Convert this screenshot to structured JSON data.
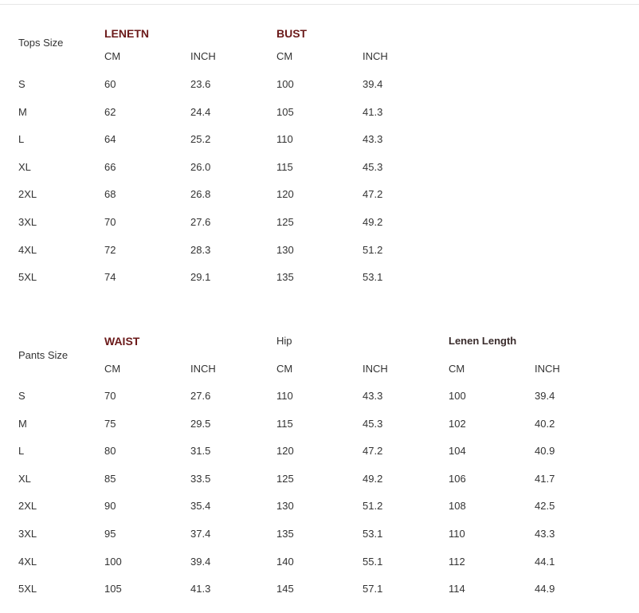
{
  "tops": {
    "label": "Tops Size",
    "groups": [
      {
        "title": "LENETN",
        "style": "hd"
      },
      {
        "title": "BUST",
        "style": "hd"
      }
    ],
    "units": [
      "CM",
      "INCH",
      "CM",
      "INCH"
    ],
    "rows": [
      [
        "S",
        "60",
        "23.6",
        "100",
        "39.4"
      ],
      [
        "M",
        "62",
        "24.4",
        "105",
        "41.3"
      ],
      [
        "L",
        "64",
        "25.2",
        "110",
        "43.3"
      ],
      [
        "XL",
        "66",
        "26.0",
        "115",
        "45.3"
      ],
      [
        "2XL",
        "68",
        "26.8",
        "120",
        "47.2"
      ],
      [
        "3XL",
        "70",
        "27.6",
        "125",
        "49.2"
      ],
      [
        "4XL",
        "72",
        "28.3",
        "130",
        "51.2"
      ],
      [
        "5XL",
        "74",
        "29.1",
        "135",
        "53.1"
      ]
    ]
  },
  "pants": {
    "label": "Pants Size",
    "groups": [
      {
        "title": "WAIST",
        "style": "hd"
      },
      {
        "title": "Hip",
        "style": "plain"
      },
      {
        "title": "Lenen Length",
        "style": "hd2"
      }
    ],
    "units": [
      "CM",
      "INCH",
      "CM",
      "INCH",
      "CM",
      "INCH"
    ],
    "rows": [
      [
        "S",
        "70",
        "27.6",
        "110",
        "43.3",
        "100",
        "39.4"
      ],
      [
        "M",
        "75",
        "29.5",
        "115",
        "45.3",
        "102",
        "40.2"
      ],
      [
        "L",
        "80",
        "31.5",
        "120",
        "47.2",
        "104",
        "40.9"
      ],
      [
        "XL",
        "85",
        "33.5",
        "125",
        "49.2",
        "106",
        "41.7"
      ],
      [
        "2XL",
        "90",
        "35.4",
        "130",
        "51.2",
        "108",
        "42.5"
      ],
      [
        "3XL",
        "95",
        "37.4",
        "135",
        "53.1",
        "110",
        "43.3"
      ],
      [
        "4XL",
        "100",
        "39.4",
        "140",
        "55.1",
        "112",
        "44.1"
      ],
      [
        "5XL",
        "105",
        "41.3",
        "145",
        "57.1",
        "114",
        "44.9"
      ]
    ]
  }
}
